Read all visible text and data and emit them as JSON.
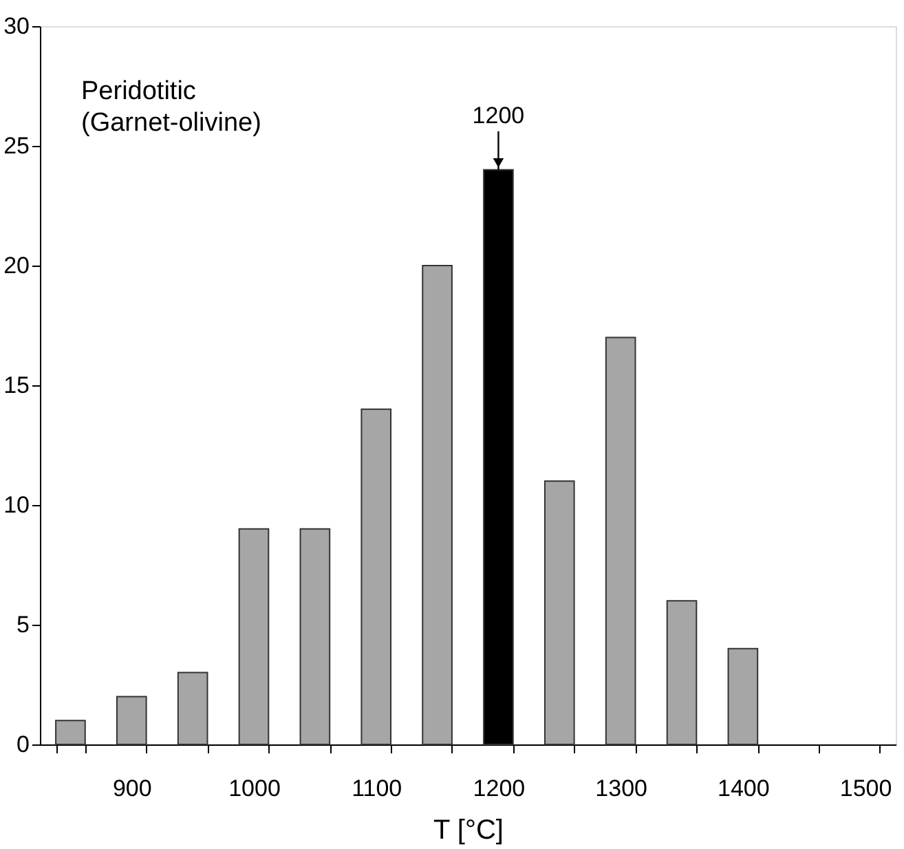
{
  "chart_data": {
    "type": "bar",
    "xlabel": "T [°C]",
    "categories": [
      null,
      "900",
      null,
      "1000",
      null,
      "1100",
      null,
      "1200",
      null,
      "1300",
      null,
      "1400",
      null,
      "1500"
    ],
    "values": [
      1,
      2,
      3,
      9,
      9,
      14,
      20,
      24,
      11,
      17,
      6,
      4,
      null,
      null
    ],
    "colors": [
      "#a6a6a6",
      "#a6a6a6",
      "#a6a6a6",
      "#a6a6a6",
      "#a6a6a6",
      "#a6a6a6",
      "#a6a6a6",
      "#000000",
      "#a6a6a6",
      "#a6a6a6",
      "#a6a6a6",
      "#a6a6a6",
      "#a6a6a6",
      "#a6a6a6"
    ],
    "ylim": [
      0,
      30
    ],
    "yticks": [
      0,
      5,
      10,
      15,
      20,
      25,
      30
    ],
    "grid": false,
    "annotations": [
      "Peridotitic",
      "(Garnet-olivine)",
      {
        "text": "1200",
        "x": "1200",
        "y": 24
      }
    ]
  }
}
